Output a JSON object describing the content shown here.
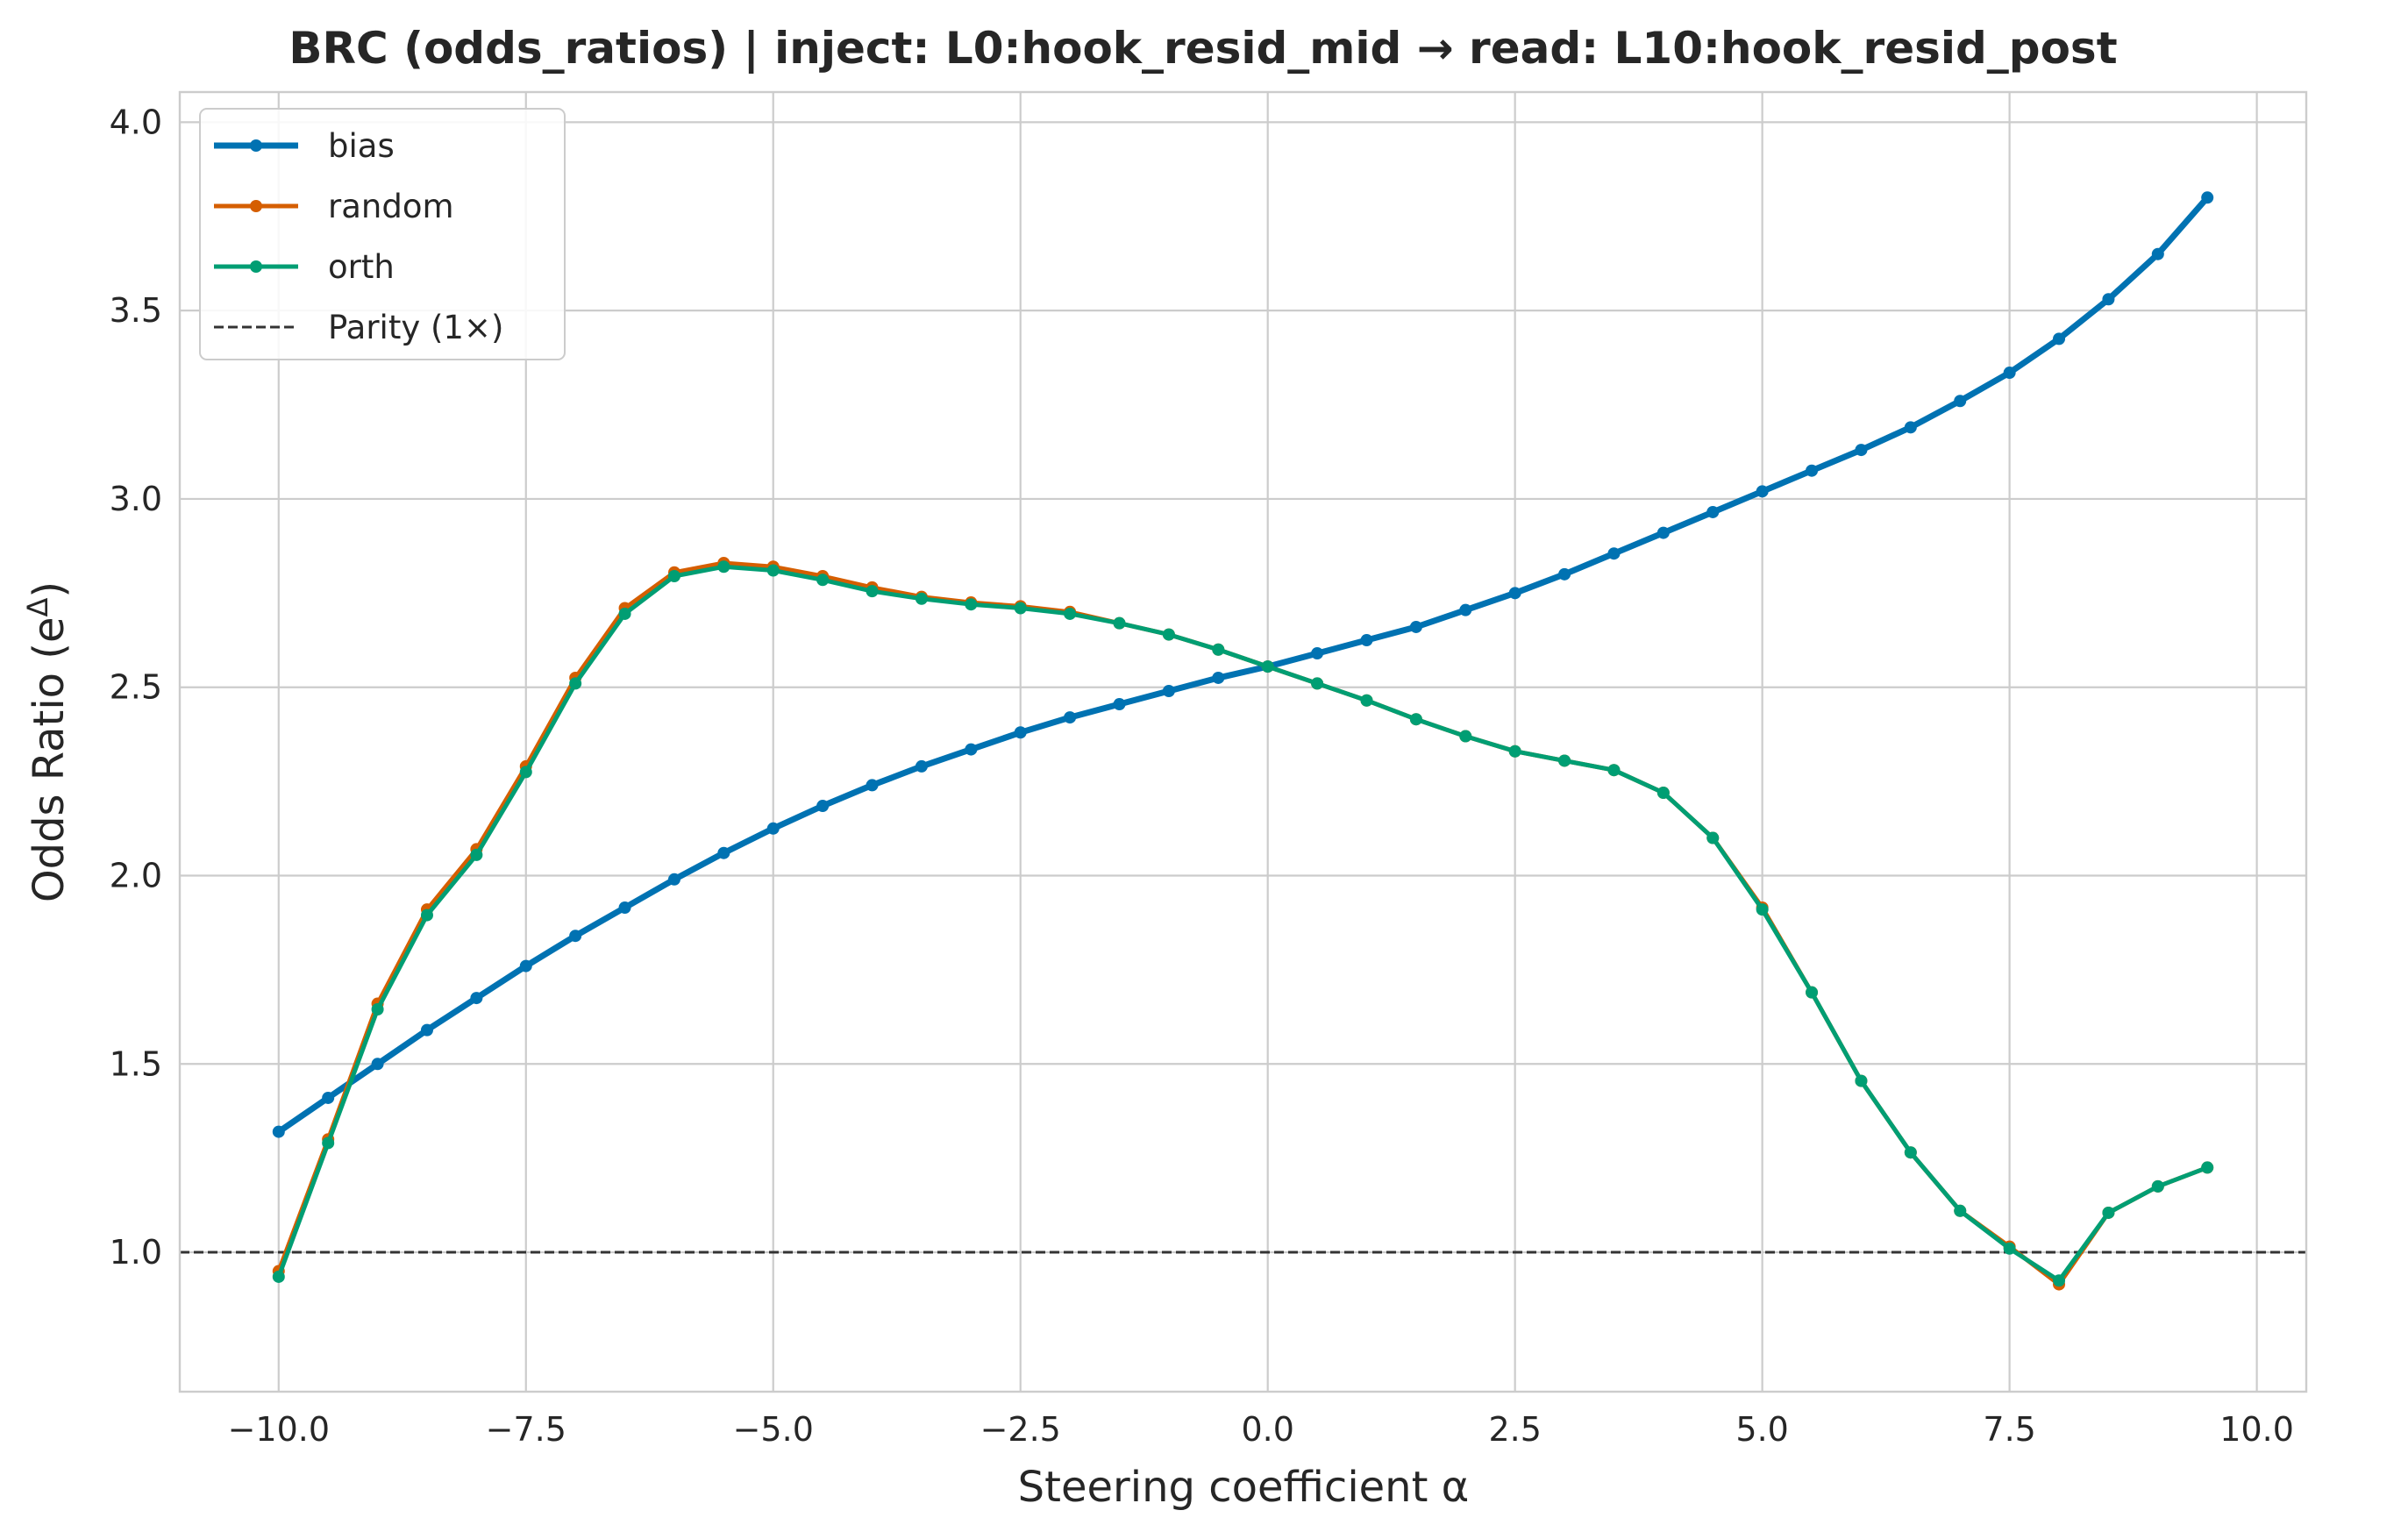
{
  "chart_data": {
    "type": "line",
    "title": "BRC (odds_ratios) | inject: L0:hook_resid_mid → read: L10:hook_resid_post",
    "xlabel": "Steering coefficient α",
    "ylabel_main": "Odds Ratio (e",
    "ylabel_sup": "Δ",
    "ylabel_end": ")",
    "xlim": [
      -11.0,
      10.5
    ],
    "ylim": [
      0.63,
      4.08
    ],
    "x_ticks": [
      -10.0,
      -7.5,
      -5.0,
      -2.5,
      0.0,
      2.5,
      5.0,
      7.5,
      10.0
    ],
    "x_tick_labels": [
      "−10.0",
      "−7.5",
      "−5.0",
      "−2.5",
      "0.0",
      "2.5",
      "5.0",
      "7.5",
      "10.0"
    ],
    "y_ticks": [
      1.0,
      1.5,
      2.0,
      2.5,
      3.0,
      3.5,
      4.0
    ],
    "y_tick_labels": [
      "1.0",
      "1.5",
      "2.0",
      "2.5",
      "3.0",
      "3.5",
      "4.0"
    ],
    "grid": true,
    "legend_position": "top-left",
    "x": [
      -10.0,
      -9.5,
      -9.0,
      -8.5,
      -8.0,
      -7.5,
      -7.0,
      -6.5,
      -6.0,
      -5.5,
      -5.0,
      -4.5,
      -4.0,
      -3.5,
      -3.0,
      -2.5,
      -2.0,
      -1.5,
      -1.0,
      -0.5,
      0.0,
      0.5,
      1.0,
      1.5,
      2.0,
      2.5,
      3.0,
      3.5,
      4.0,
      4.5,
      5.0,
      5.5,
      6.0,
      6.5,
      7.0,
      7.5,
      8.0,
      8.5,
      9.0,
      9.5
    ],
    "series": [
      {
        "name": "bias",
        "color": "#0072b2",
        "line_width": 7,
        "values": [
          1.32,
          1.41,
          1.5,
          1.59,
          1.675,
          1.76,
          1.84,
          1.915,
          1.99,
          2.06,
          2.125,
          2.185,
          2.24,
          2.29,
          2.335,
          2.38,
          2.42,
          2.455,
          2.49,
          2.525,
          2.555,
          2.59,
          2.625,
          2.66,
          2.705,
          2.75,
          2.8,
          2.855,
          2.91,
          2.965,
          3.02,
          3.075,
          3.13,
          3.19,
          3.26,
          3.335,
          3.425,
          3.53,
          3.65,
          3.8
        ]
      },
      {
        "name": "random",
        "color": "#d55e00",
        "line_width": 5,
        "values": [
          0.95,
          1.3,
          1.66,
          1.91,
          2.07,
          2.29,
          2.525,
          2.71,
          2.805,
          2.83,
          2.82,
          2.795,
          2.765,
          2.74,
          2.725,
          2.715,
          2.7,
          2.67,
          2.64,
          2.6,
          2.555,
          2.51,
          2.465,
          2.415,
          2.37,
          2.33,
          2.305,
          2.28,
          2.22,
          2.1,
          1.915,
          1.69,
          1.455,
          1.265,
          1.11,
          1.015,
          0.915,
          1.105,
          1.175,
          1.225
        ]
      },
      {
        "name": "orth",
        "color": "#009e73",
        "line_width": 5,
        "values": [
          0.935,
          1.29,
          1.645,
          1.895,
          2.055,
          2.275,
          2.51,
          2.695,
          2.795,
          2.82,
          2.81,
          2.785,
          2.755,
          2.735,
          2.72,
          2.71,
          2.695,
          2.67,
          2.64,
          2.6,
          2.555,
          2.51,
          2.465,
          2.415,
          2.37,
          2.33,
          2.305,
          2.28,
          2.22,
          2.1,
          1.91,
          1.69,
          1.455,
          1.265,
          1.11,
          1.01,
          0.925,
          1.105,
          1.175,
          1.225
        ]
      }
    ],
    "reference_line": {
      "name": "Parity (1×)",
      "y": 1.0,
      "color": "#333333",
      "style": "dashed"
    }
  }
}
